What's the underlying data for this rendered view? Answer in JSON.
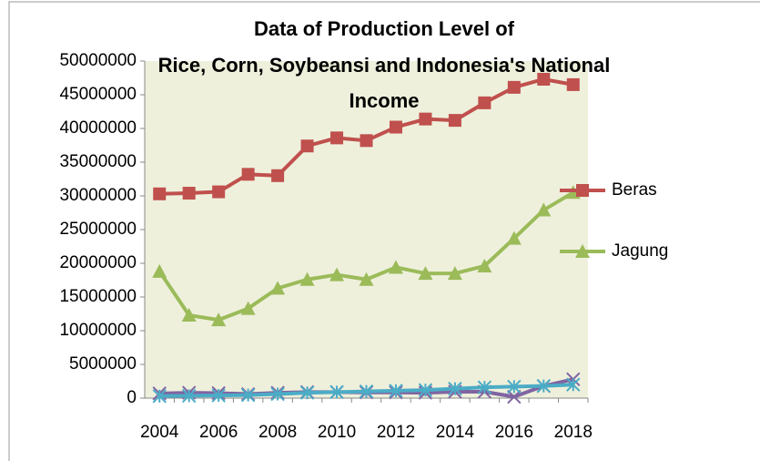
{
  "chart_data": {
    "type": "line",
    "title": [
      "Data of  Production Level of",
      "Rice, Corn, Soybeansi and Indonesia's  National",
      "Income"
    ],
    "x": [
      2004,
      2005,
      2006,
      2007,
      2008,
      2009,
      2010,
      2011,
      2012,
      2013,
      2014,
      2015,
      2016,
      2017,
      2018
    ],
    "xlim": [
      2003.5,
      2018.5
    ],
    "xticks": [
      2004,
      2006,
      2008,
      2010,
      2012,
      2014,
      2016,
      2018
    ],
    "ylim": [
      0,
      50000000
    ],
    "yticks": [
      0,
      5000000,
      10000000,
      15000000,
      20000000,
      25000000,
      30000000,
      35000000,
      40000000,
      45000000,
      50000000
    ],
    "grid": false,
    "legend": "right",
    "series": [
      {
        "name": "Beras",
        "color": "#c0504d",
        "marker": "square",
        "values": [
          30300000,
          30400000,
          30600000,
          33200000,
          33000000,
          37400000,
          38600000,
          38200000,
          40200000,
          41400000,
          41200000,
          43800000,
          46100000,
          47300000,
          46500000
        ]
      },
      {
        "name": "Jagung",
        "color": "#9bbb59",
        "marker": "triangle",
        "values": [
          18800000,
          12300000,
          11600000,
          13300000,
          16300000,
          17600000,
          18300000,
          17600000,
          19400000,
          18500000,
          18500000,
          19600000,
          23700000,
          27900000,
          30500000
        ]
      },
      {
        "color": "#8064a2",
        "marker": "x",
        "values": [
          700000,
          800000,
          750000,
          600000,
          800000,
          900000,
          900000,
          850000,
          850000,
          800000,
          950000,
          950000,
          200000,
          1800000,
          2800000
        ]
      },
      {
        "color": "#4bacc6",
        "marker": "star",
        "values": [
          300000,
          350000,
          400000,
          450000,
          600000,
          800000,
          900000,
          1000000,
          1100000,
          1200000,
          1400000,
          1600000,
          1700000,
          1800000,
          2000000
        ]
      }
    ]
  }
}
